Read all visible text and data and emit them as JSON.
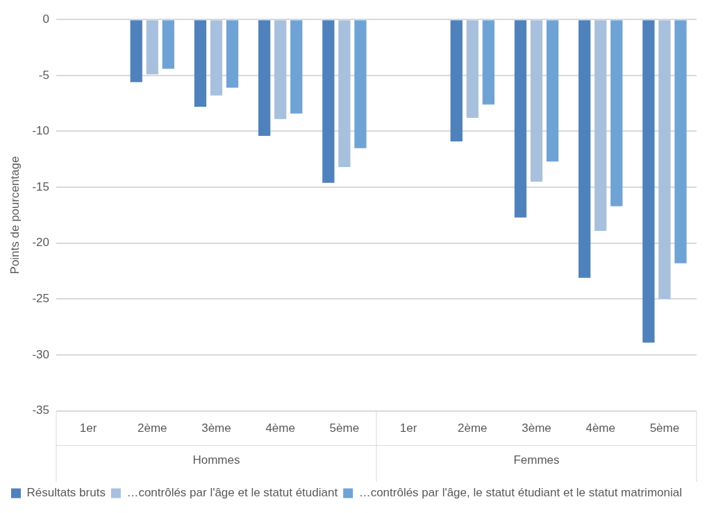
{
  "chart_data": {
    "type": "bar",
    "ylabel": "Points de pourcentage",
    "categories": [
      "1er",
      "2ème",
      "3ème",
      "4ème",
      "5ème",
      "1er",
      "2ème",
      "3ème",
      "4ème",
      "5ème"
    ],
    "annotations": [
      "Hommes",
      "Femmes"
    ],
    "series": [
      {
        "name": "Résultats bruts",
        "color": "#4f81bd",
        "values": [
          0,
          -5.6,
          -7.8,
          -10.4,
          -14.6,
          0,
          -10.9,
          -17.7,
          -23.1,
          -28.9
        ]
      },
      {
        "name": "…contrôlés par l'âge et le statut étudiant",
        "color": "#a7c0de",
        "values": [
          0,
          -4.9,
          -6.8,
          -8.9,
          -13.2,
          0,
          -8.8,
          -14.5,
          -18.9,
          -25.0
        ]
      },
      {
        "name": "…contrôlés par l'âge, le statut étudiant et le statut matrimonial",
        "color": "#6fa3d6",
        "values": [
          0,
          -4.4,
          -6.1,
          -8.4,
          -11.5,
          0,
          -7.6,
          -12.7,
          -16.7,
          -21.8
        ]
      }
    ],
    "ylim": [
      -35,
      0
    ],
    "yticks": [
      0,
      -5,
      -10,
      -15,
      -20,
      -25,
      -30,
      -35
    ],
    "grid": "y",
    "legend": "bottom"
  }
}
